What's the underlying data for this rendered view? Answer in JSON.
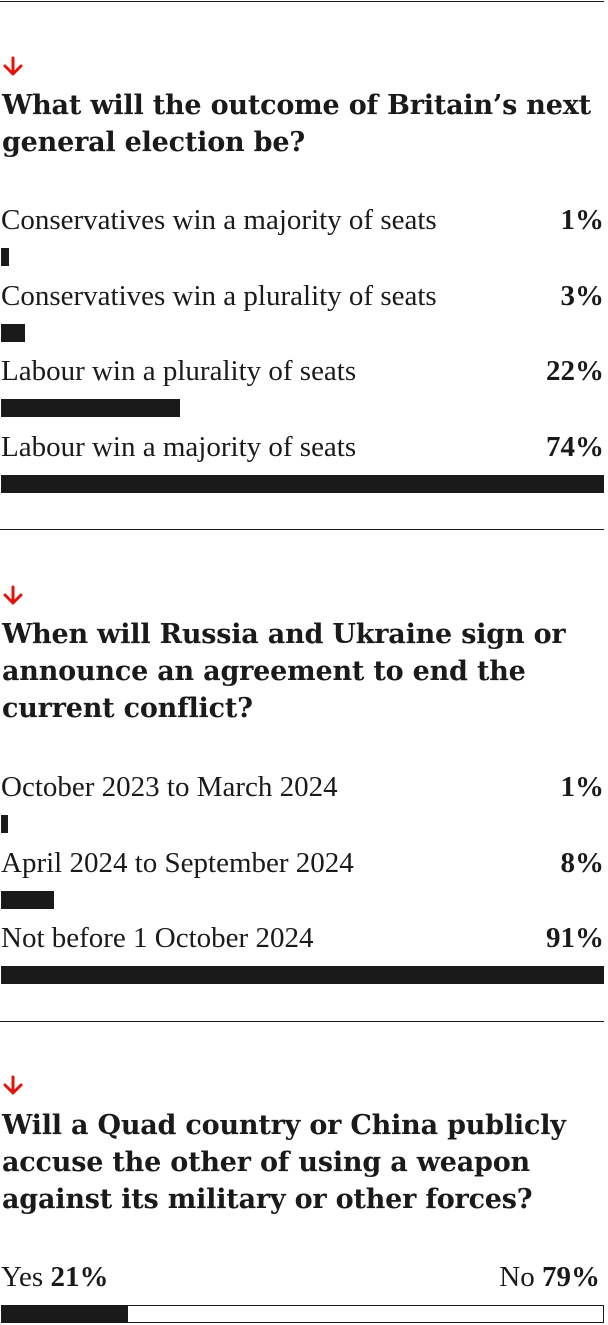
{
  "colors": {
    "ink": "#1a1a1a",
    "accent_arrow": "#e3120b",
    "background": "#ffffff"
  },
  "icons": {
    "arrow": "arrow-down-icon"
  },
  "chart_data": [
    {
      "type": "bar",
      "orientation": "horizontal",
      "title": "What will the outcome of Britain’s next general election be?",
      "categories": [
        "Conservatives win a majority of seats",
        "Conservatives win a plurality of seats",
        "Labour win a plurality of seats",
        "Labour win a majority of seats"
      ],
      "values": [
        1,
        3,
        22,
        74
      ],
      "value_labels": [
        "1%",
        "3%",
        "22%",
        "74%"
      ],
      "unit": "%",
      "xlim": [
        0,
        74
      ]
    },
    {
      "type": "bar",
      "orientation": "horizontal",
      "title": "When will Russia and Ukraine sign or announce an agreement to end the current conflict?",
      "categories": [
        "October 2023 to  March 2024",
        "April 2024 to September 2024",
        "Not before 1 October 2024"
      ],
      "values": [
        1,
        8,
        91
      ],
      "value_labels": [
        "1%",
        "8%",
        "91%"
      ],
      "unit": "%",
      "xlim": [
        0,
        91
      ]
    },
    {
      "type": "bar",
      "orientation": "horizontal",
      "stacked": true,
      "title": "Will a Quad country or China publicly accuse the other of using a weapon against its military or other forces?",
      "categories": [
        "Yes",
        "No"
      ],
      "values": [
        21,
        79
      ],
      "value_labels": [
        "21%",
        "79%"
      ],
      "unit": "%"
    }
  ]
}
